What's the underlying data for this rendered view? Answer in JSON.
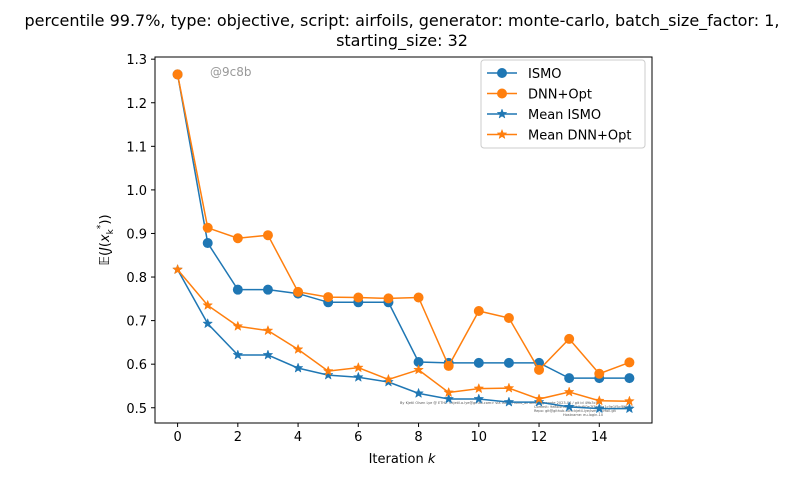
{
  "chart_data": {
    "type": "line",
    "title_line1": "percentile 99.7%, type: objective, script: airfoils, generator: monte-carlo, batch_size_factor: 1,",
    "title_line2": "starting_size: 32",
    "xlabel": "Iteration k",
    "ylabel": "𝔼(J(x_k*))",
    "xlim": [
      -0.75,
      15.75
    ],
    "ylim": [
      0.465,
      1.305
    ],
    "xticks": [
      "0",
      "2",
      "4",
      "6",
      "8",
      "10",
      "12",
      "14"
    ],
    "xtick_values": [
      0,
      2,
      4,
      6,
      8,
      10,
      12,
      14
    ],
    "yticks": [
      "0.5",
      "0.6",
      "0.7",
      "0.8",
      "0.9",
      "1.0",
      "1.1",
      "1.2",
      "1.3"
    ],
    "ytick_values": [
      0.5,
      0.6,
      0.7,
      0.8,
      0.9,
      1.0,
      1.1,
      1.2,
      1.3
    ],
    "watermark": "@9c8b",
    "legend_position": "upper-right",
    "footer_text": [
      "By Kjetil Olsen Lye @ ETHZ <kjetil.o.lye@gmail.com> via ISMO / ismo_airfoils_aggregate 2023-04 / git id 49b3c5a9",
      "Commit: 9e8b4f5e88b8b9c6f0e7f3b42a1c9e1f5cf86b42",
      "Repo: git@github.com:kjetil-lye/ismo_airfoil.git",
      "Hostname: eu-login-10"
    ],
    "x": [
      0,
      1,
      2,
      3,
      4,
      5,
      6,
      7,
      8,
      9,
      10,
      11,
      12,
      13,
      14,
      15
    ],
    "series": [
      {
        "name": "ISMO",
        "color": "#1f77b4",
        "marker": "circle",
        "values": [
          1.265,
          0.878,
          0.771,
          0.771,
          0.762,
          0.742,
          0.742,
          0.742,
          0.605,
          0.603,
          0.603,
          0.603,
          0.603,
          0.568,
          0.568,
          0.568
        ]
      },
      {
        "name": "DNN+Opt",
        "color": "#ff7f0e",
        "marker": "circle",
        "values": [
          1.265,
          0.913,
          0.889,
          0.896,
          0.766,
          0.754,
          0.753,
          0.751,
          0.753,
          0.596,
          0.722,
          0.706,
          0.587,
          0.658,
          0.578,
          0.604
        ]
      },
      {
        "name": "Mean ISMO",
        "color": "#1f77b4",
        "marker": "star",
        "values": [
          0.817,
          0.693,
          0.621,
          0.621,
          0.591,
          0.575,
          0.57,
          0.559,
          0.533,
          0.52,
          0.52,
          0.513,
          0.513,
          0.502,
          0.498,
          0.498
        ]
      },
      {
        "name": "Mean DNN+Opt",
        "color": "#ff7f0e",
        "marker": "star",
        "values": [
          0.817,
          0.735,
          0.687,
          0.677,
          0.634,
          0.584,
          0.592,
          0.565,
          0.587,
          0.535,
          0.544,
          0.545,
          0.52,
          0.536,
          0.516,
          0.515
        ]
      }
    ]
  }
}
